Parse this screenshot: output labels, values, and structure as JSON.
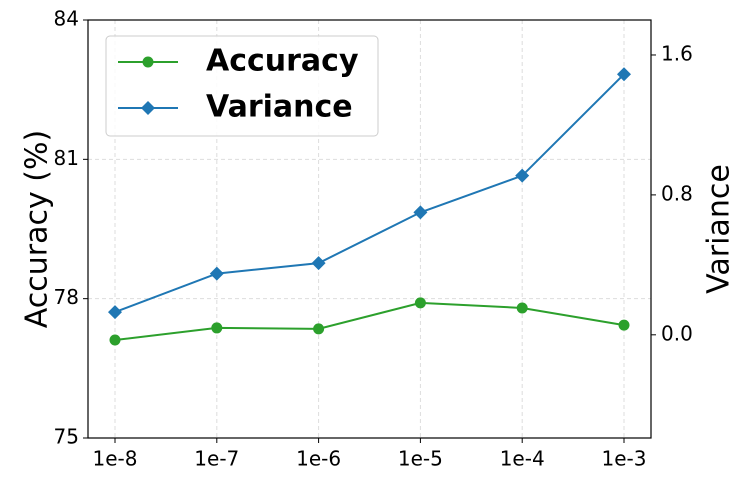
{
  "chart_data": {
    "type": "line",
    "categories": [
      "1e-8",
      "1e-7",
      "1e-6",
      "1e-5",
      "1e-4",
      "1e-3"
    ],
    "y_label": "Accuracy (%)",
    "y2_label": "Variance",
    "series": [
      {
        "name": "Accuracy",
        "color": "#2ca02c",
        "marker": "circle",
        "values": [
          77.11,
          77.37,
          77.35,
          77.91,
          77.8,
          77.43
        ]
      },
      {
        "name": "Variance",
        "color": "#1f77b4",
        "marker": "diamond",
        "axis": "y2",
        "values": [
          0.13,
          0.35,
          0.41,
          0.7,
          0.91,
          1.49
        ]
      }
    ],
    "ylim": [
      75,
      84
    ],
    "yticks": [
      75,
      78,
      81,
      84
    ],
    "y2lim": [
      -0.59,
      1.8
    ],
    "y2ticks": [
      {
        "value": 0,
        "label": "0.0"
      },
      0.8,
      1.6
    ],
    "grid": true,
    "legend": "upper left"
  }
}
